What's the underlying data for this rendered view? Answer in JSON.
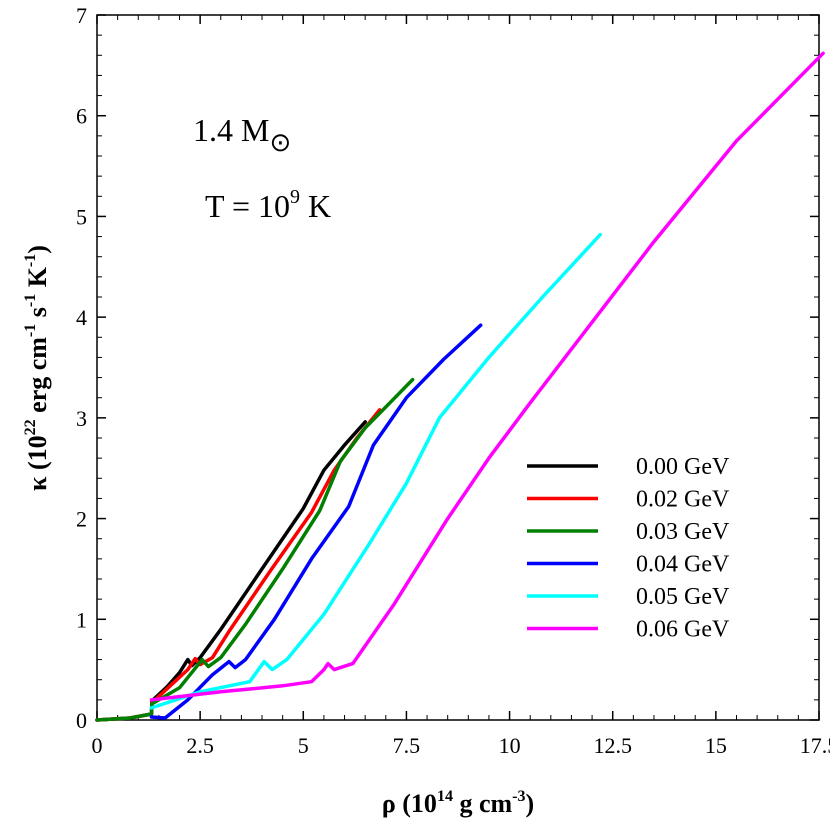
{
  "chart_data": {
    "type": "line",
    "xlabel": {
      "main": "ρ (10",
      "sup": "14",
      "rest": " g cm",
      "sup2": "-3",
      "end": ")"
    },
    "ylabel": {
      "main": "κ (10",
      "sup": "22",
      "p1": " erg cm",
      "s1": "-1",
      "p2": " s",
      "s2": "-1",
      "p3": " K",
      "s3": "-1",
      "end": ")"
    },
    "xlim": [
      0,
      17.5
    ],
    "ylim": [
      0,
      7
    ],
    "xticks": [
      0,
      2.5,
      5,
      7.5,
      10,
      12.5,
      15,
      17.5
    ],
    "xtick_labels": [
      "0",
      "2.5",
      "5",
      "7.5",
      "10",
      "12.5",
      "15",
      "17.5"
    ],
    "yticks": [
      0,
      1,
      2,
      3,
      4,
      5,
      6,
      7
    ],
    "ytick_labels": [
      "0",
      "1",
      "2",
      "3",
      "4",
      "5",
      "6",
      "7"
    ],
    "annotations": {
      "mass": {
        "value": "1.4 M",
        "symbol": "⊙"
      },
      "temp": {
        "main": "T = 10",
        "sup": "9",
        "end": " K"
      }
    },
    "legend_position": "bottom-right",
    "series": [
      {
        "name": "0.00 GeV",
        "color": "#000000",
        "points": [
          [
            0,
            0
          ],
          [
            0.8,
            0.02
          ],
          [
            1.32,
            0.06
          ],
          [
            1.33,
            0.19
          ],
          [
            1.7,
            0.33
          ],
          [
            2.0,
            0.47
          ],
          [
            2.2,
            0.6
          ],
          [
            2.3,
            0.54
          ],
          [
            2.5,
            0.62
          ],
          [
            3.0,
            0.9
          ],
          [
            4.0,
            1.5
          ],
          [
            5.0,
            2.1
          ],
          [
            5.5,
            2.48
          ],
          [
            6.0,
            2.73
          ],
          [
            6.5,
            2.96
          ]
        ]
      },
      {
        "name": "0.02 GeV",
        "color": "#ff0000",
        "points": [
          [
            0,
            0
          ],
          [
            0.8,
            0.02
          ],
          [
            1.32,
            0.06
          ],
          [
            1.33,
            0.17
          ],
          [
            1.8,
            0.35
          ],
          [
            2.2,
            0.5
          ],
          [
            2.38,
            0.61
          ],
          [
            2.5,
            0.55
          ],
          [
            2.8,
            0.62
          ],
          [
            3.2,
            0.88
          ],
          [
            4.2,
            1.48
          ],
          [
            5.2,
            2.06
          ],
          [
            5.75,
            2.48
          ],
          [
            6.3,
            2.8
          ],
          [
            6.85,
            3.08
          ]
        ]
      },
      {
        "name": "0.03 GeV",
        "color": "#008000",
        "points": [
          [
            0,
            0
          ],
          [
            0.8,
            0.02
          ],
          [
            1.32,
            0.06
          ],
          [
            1.33,
            0.16
          ],
          [
            2.0,
            0.32
          ],
          [
            2.55,
            0.6
          ],
          [
            2.7,
            0.53
          ],
          [
            3.0,
            0.62
          ],
          [
            3.6,
            0.95
          ],
          [
            4.5,
            1.5
          ],
          [
            5.4,
            2.08
          ],
          [
            5.9,
            2.57
          ],
          [
            6.5,
            2.9
          ],
          [
            7.1,
            3.15
          ],
          [
            7.65,
            3.38
          ]
        ]
      },
      {
        "name": "0.04 GeV",
        "color": "#0000ff",
        "points": [
          [
            1.32,
            0.03
          ],
          [
            1.65,
            0.02
          ],
          [
            2.2,
            0.2
          ],
          [
            2.8,
            0.45
          ],
          [
            3.2,
            0.58
          ],
          [
            3.35,
            0.52
          ],
          [
            3.6,
            0.6
          ],
          [
            4.3,
            1.0
          ],
          [
            5.2,
            1.6
          ],
          [
            6.1,
            2.12
          ],
          [
            6.7,
            2.73
          ],
          [
            7.5,
            3.2
          ],
          [
            8.4,
            3.58
          ],
          [
            9.3,
            3.92
          ]
        ]
      },
      {
        "name": "0.05 GeV",
        "color": "#00ffff",
        "points": [
          [
            1.32,
            0.12
          ],
          [
            2.5,
            0.28
          ],
          [
            3.7,
            0.38
          ],
          [
            4.05,
            0.58
          ],
          [
            4.25,
            0.5
          ],
          [
            4.6,
            0.6
          ],
          [
            5.5,
            1.05
          ],
          [
            6.6,
            1.75
          ],
          [
            7.5,
            2.35
          ],
          [
            8.3,
            3.0
          ],
          [
            9.5,
            3.6
          ],
          [
            10.8,
            4.2
          ],
          [
            12.2,
            4.82
          ]
        ]
      },
      {
        "name": "0.06 GeV",
        "color": "#ff00ff",
        "points": [
          [
            1.32,
            0.2
          ],
          [
            3.0,
            0.28
          ],
          [
            4.5,
            0.34
          ],
          [
            5.2,
            0.38
          ],
          [
            5.5,
            0.5
          ],
          [
            5.6,
            0.56
          ],
          [
            5.75,
            0.5
          ],
          [
            6.2,
            0.56
          ],
          [
            7.2,
            1.15
          ],
          [
            8.5,
            2.0
          ],
          [
            9.5,
            2.6
          ],
          [
            10.5,
            3.15
          ],
          [
            12.0,
            3.95
          ],
          [
            13.5,
            4.75
          ],
          [
            15.5,
            5.75
          ],
          [
            17.6,
            6.62
          ]
        ]
      }
    ]
  }
}
